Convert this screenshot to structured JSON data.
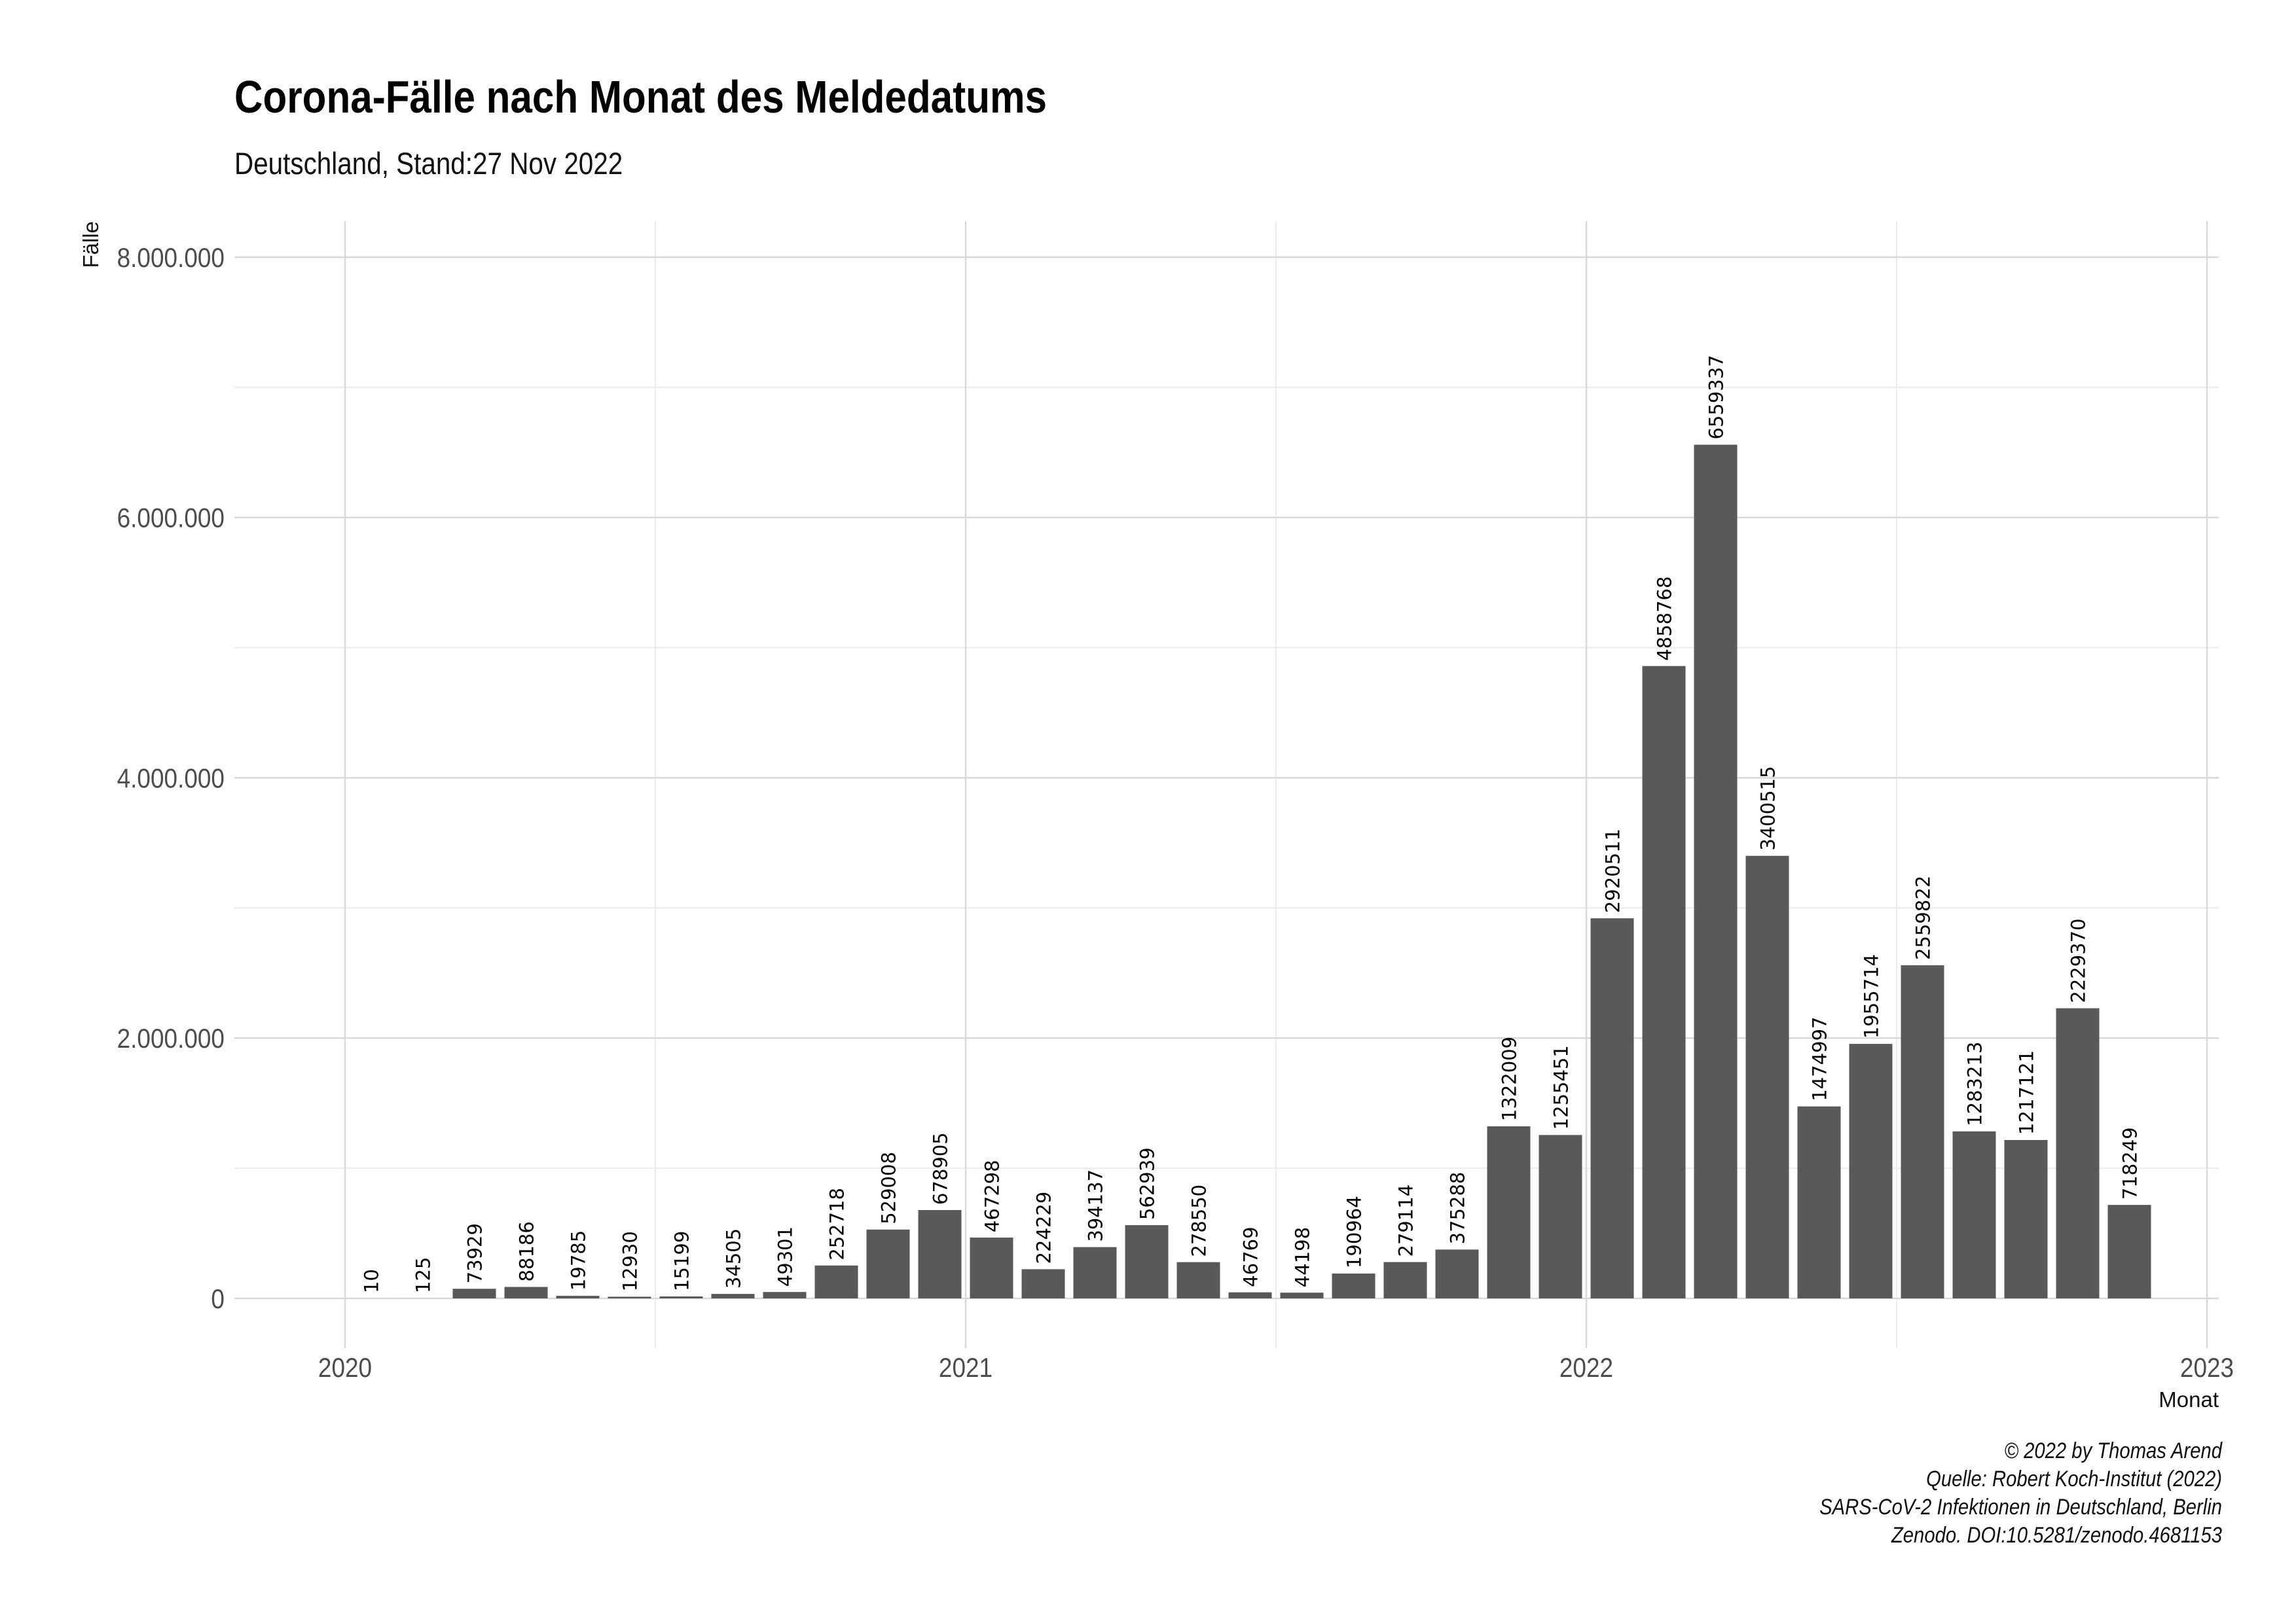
{
  "chart_data": {
    "type": "bar",
    "title": "Corona-Fälle nach Monat des Meldedatums",
    "subtitle": "Deutschland, Stand:27 Nov 2022",
    "ylabel": "Fälle",
    "xlabel": "Monat",
    "x_tick_labels": [
      "2020",
      "2021",
      "2022",
      "2023"
    ],
    "y_tick_labels": [
      "0",
      "2.000.000",
      "4.000.000",
      "6.000.000",
      "8.000.000"
    ],
    "y_ticks": [
      0,
      2000000,
      4000000,
      6000000,
      8000000
    ],
    "ylim": [
      0,
      8000000
    ],
    "grid": true,
    "bar_color": "#595959",
    "categories": [
      "2020-01",
      "2020-02",
      "2020-03",
      "2020-04",
      "2020-05",
      "2020-06",
      "2020-07",
      "2020-08",
      "2020-09",
      "2020-10",
      "2020-11",
      "2020-12",
      "2021-01",
      "2021-02",
      "2021-03",
      "2021-04",
      "2021-05",
      "2021-06",
      "2021-07",
      "2021-08",
      "2021-09",
      "2021-10",
      "2021-11",
      "2021-12",
      "2022-01",
      "2022-02",
      "2022-03",
      "2022-04",
      "2022-05",
      "2022-06",
      "2022-07",
      "2022-08",
      "2022-09",
      "2022-10",
      "2022-11"
    ],
    "values": [
      10,
      125,
      73929,
      88186,
      19785,
      12930,
      15199,
      34505,
      49301,
      252718,
      529008,
      678905,
      467298,
      224229,
      394137,
      562939,
      278550,
      46769,
      44198,
      190964,
      279114,
      375288,
      1322009,
      1255451,
      2920511,
      4858768,
      6559337,
      3400515,
      1474997,
      1955714,
      2559822,
      1283213,
      1217121,
      2229370,
      718249
    ],
    "caption": [
      "© 2022 by Thomas Arend",
      "Quelle: Robert Koch-Institut (2022)",
      "SARS-CoV-2 Infektionen in Deutschland, Berlin",
      "Zenodo. DOI:10.5281/zenodo.4681153"
    ]
  }
}
